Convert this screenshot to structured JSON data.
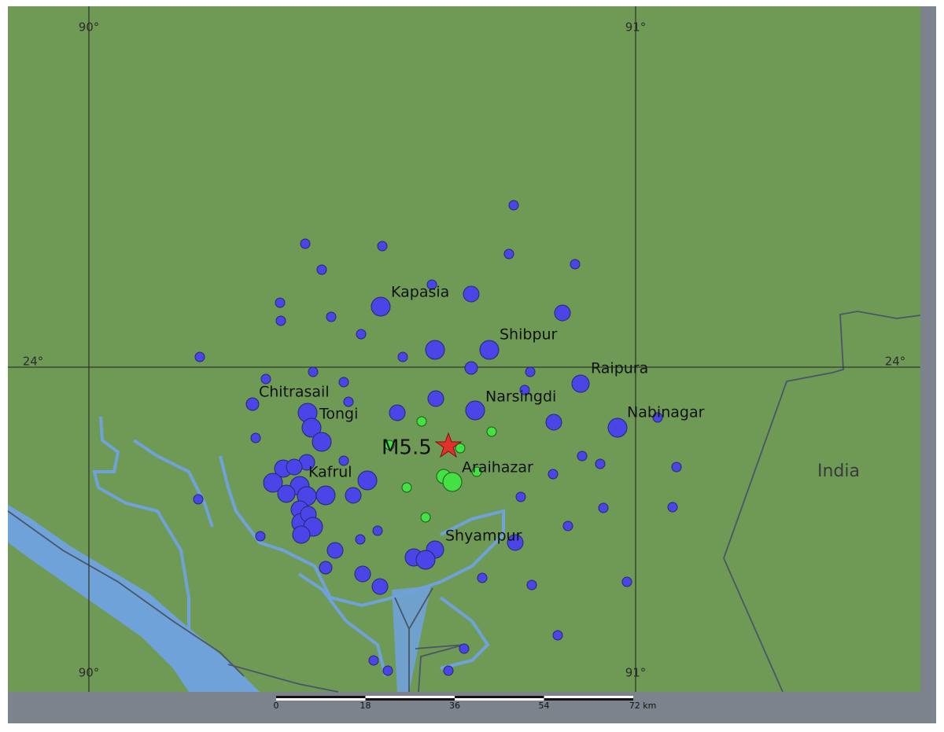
{
  "map": {
    "grid_labels": {
      "lon_west_top": "90°",
      "lon_east_top": "91°",
      "lon_west_bottom": "90°",
      "lon_east_bottom": "91°",
      "lat_left": "24°",
      "lat_right": "24°"
    },
    "places": [
      "Kapasia",
      "Shibpur",
      "Raipura",
      "Chitrasail",
      "Narsingdi",
      "Nabinagar",
      "Tongi",
      "Araihazar",
      "Kafrul",
      "Shyampur"
    ],
    "epicenter_label": "M5.5",
    "country_label": "India",
    "scale_bar": {
      "labels": [
        "0",
        "18",
        "36",
        "54",
        "72 km"
      ]
    }
  }
}
